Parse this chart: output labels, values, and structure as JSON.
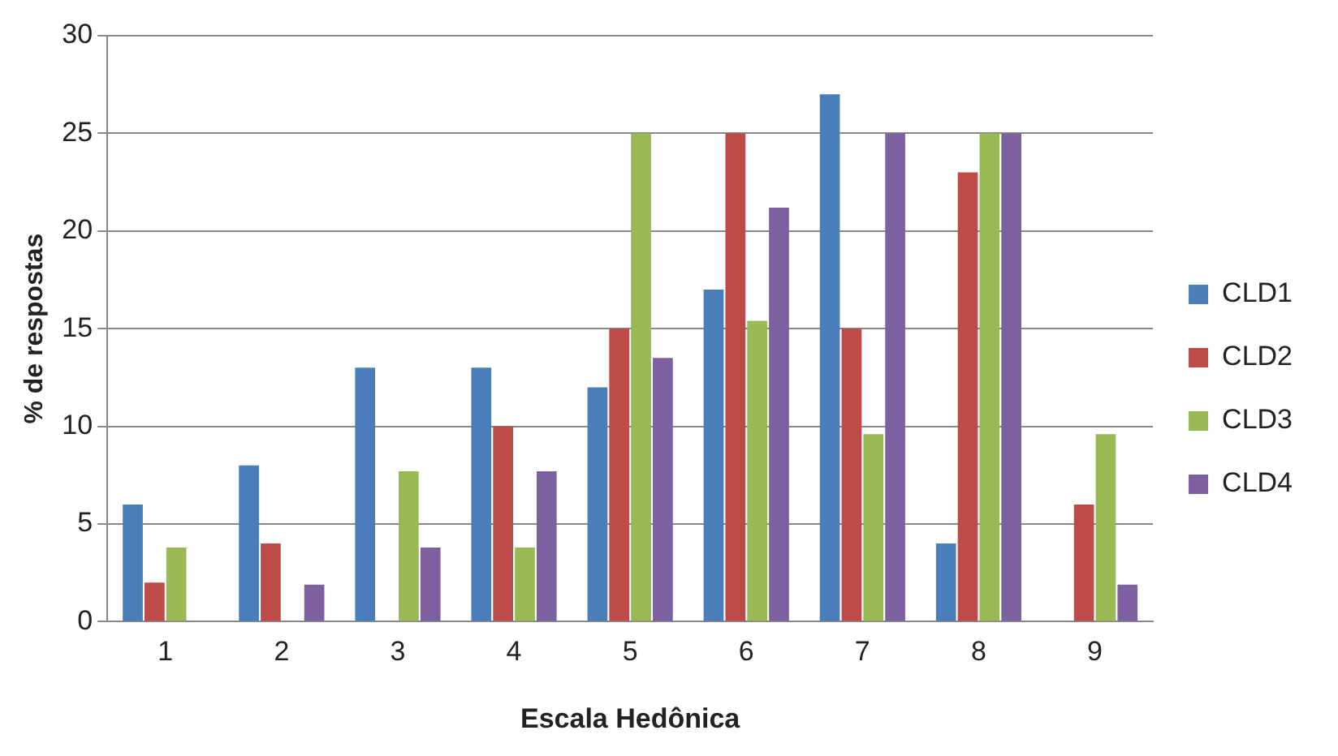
{
  "chart_data": {
    "type": "bar",
    "xlabel": "Escala Hedônica",
    "ylabel": "% de respostas",
    "categories": [
      "1",
      "2",
      "3",
      "4",
      "5",
      "6",
      "7",
      "8",
      "9"
    ],
    "series": [
      {
        "name": "CLD1",
        "color": "#4a7ebb",
        "values": [
          6,
          8,
          13,
          13,
          12,
          17,
          27,
          4,
          0
        ]
      },
      {
        "name": "CLD2",
        "color": "#be4b48",
        "values": [
          2,
          4,
          0,
          10,
          15,
          25,
          15,
          23,
          6
        ]
      },
      {
        "name": "CLD3",
        "color": "#98b954",
        "values": [
          3.8,
          0,
          7.7,
          3.8,
          25,
          15.4,
          9.6,
          25,
          9.6
        ]
      },
      {
        "name": "CLD4",
        "color": "#7d60a0",
        "values": [
          0,
          1.9,
          3.8,
          7.7,
          13.5,
          21.2,
          25,
          25,
          1.9
        ]
      }
    ],
    "ylim": [
      0,
      30
    ],
    "yticks": [
      0,
      5,
      10,
      15,
      20,
      25,
      30
    ],
    "grid": "y",
    "legend": "right"
  }
}
